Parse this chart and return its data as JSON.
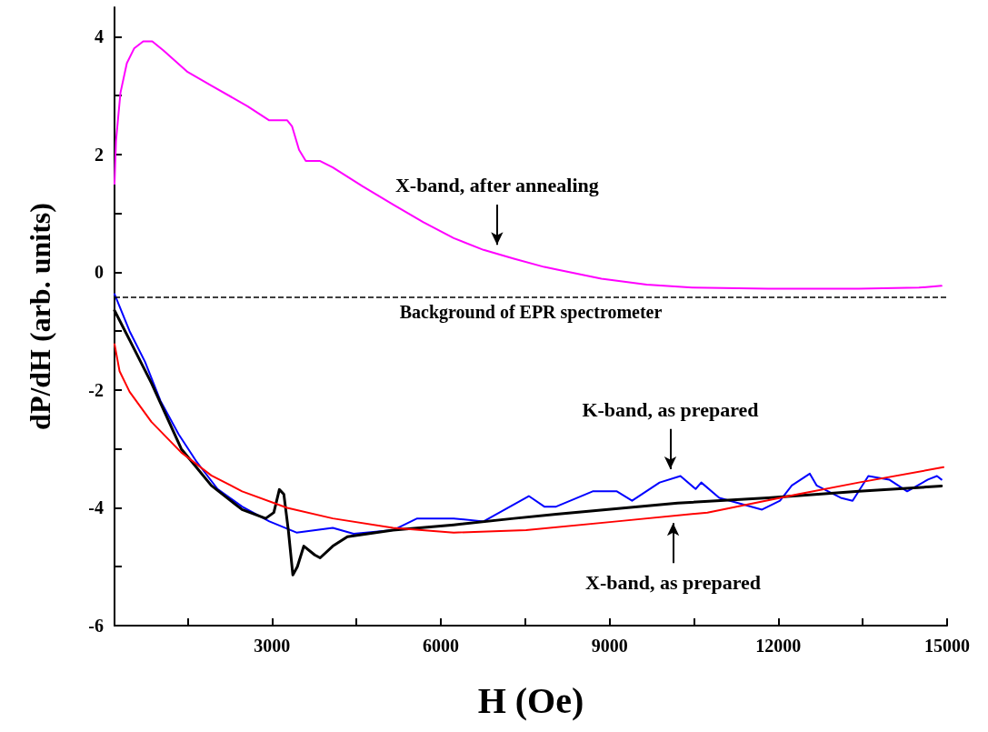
{
  "chart_data": {
    "type": "line",
    "xlabel": "H (Oe)",
    "ylabel": "dP/dH (arb. units)",
    "xlim": [
      200,
      15000
    ],
    "ylim": [
      -6,
      4.5
    ],
    "xticks": [
      {
        "value": 1500,
        "label": null
      },
      3000,
      {
        "value": 4500,
        "label": null
      },
      6000,
      {
        "value": 7500,
        "label": null
      },
      9000,
      {
        "value": 10500,
        "label": null
      },
      12000,
      {
        "value": 13500,
        "label": null
      },
      15000
    ],
    "yticks": [
      -6,
      {
        "value": -5,
        "label": null
      },
      -4,
      {
        "value": -3,
        "label": null
      },
      -2,
      {
        "value": -1,
        "label": null
      },
      0,
      {
        "value": 1,
        "label": null
      },
      2,
      {
        "value": 3,
        "label": null
      },
      4
    ],
    "grid": false,
    "marker": "none",
    "line_style": "solid",
    "series": [
      {
        "color": "#ff00ff",
        "x": [
          200,
          226,
          306,
          419,
          548,
          710,
          871,
          1065,
          1500,
          1920,
          2565,
          2950,
          3270,
          3355,
          3480,
          3600,
          3855,
          4080,
          4610,
          5150,
          5690,
          6230,
          6760,
          7300,
          7840,
          8050,
          8855,
          9660,
          10470,
          11820,
          13430,
          14500,
          14900
        ],
        "values": [
          1.5,
          2.23,
          3.05,
          3.55,
          3.8,
          3.92,
          3.92,
          3.77,
          3.4,
          3.17,
          2.82,
          2.58,
          2.58,
          2.48,
          2.08,
          1.89,
          1.89,
          1.78,
          1.46,
          1.15,
          0.85,
          0.58,
          0.38,
          0.23,
          0.09,
          0.05,
          -0.11,
          -0.21,
          -0.26,
          -0.28,
          -0.28,
          -0.26,
          -0.23
        ]
      },
      {
        "color": "#0000ff",
        "x": [
          200,
          468,
          742,
          1016,
          1339,
          1661,
          2032,
          2468,
          2952,
          3435,
          4080,
          4450,
          5150,
          5580,
          6230,
          6760,
          7565,
          7840,
          8050,
          8700,
          9130,
          9400,
          9890,
          10260,
          10530,
          10630,
          10950,
          11710,
          12030,
          12240,
          12560,
          12680,
          13110,
          13320,
          13600,
          13970,
          14290,
          14660,
          14820,
          14900
        ],
        "values": [
          -0.37,
          -1.0,
          -1.52,
          -2.18,
          -2.75,
          -3.22,
          -3.68,
          -3.98,
          -4.23,
          -4.42,
          -4.34,
          -4.44,
          -4.38,
          -4.18,
          -4.18,
          -4.23,
          -3.8,
          -3.98,
          -3.98,
          -3.72,
          -3.72,
          -3.88,
          -3.57,
          -3.46,
          -3.68,
          -3.57,
          -3.83,
          -4.03,
          -3.88,
          -3.62,
          -3.42,
          -3.62,
          -3.83,
          -3.88,
          -3.46,
          -3.52,
          -3.72,
          -3.52,
          -3.46,
          -3.52
        ]
      },
      {
        "color": "#000000",
        "x": [
          200,
          468,
          855,
          1387,
          1920,
          2468,
          2887,
          3032,
          3130,
          3210,
          3290,
          3370,
          3450,
          3565,
          3758,
          3855,
          4080,
          4340,
          5150,
          6230,
          7300,
          8050,
          10210,
          11820,
          13430,
          14900
        ],
        "values": [
          -0.65,
          -1.15,
          -1.88,
          -3.0,
          -3.62,
          -4.03,
          -4.18,
          -4.08,
          -3.69,
          -3.77,
          -4.38,
          -5.14,
          -5.0,
          -4.65,
          -4.8,
          -4.85,
          -4.65,
          -4.49,
          -4.38,
          -4.29,
          -4.18,
          -4.11,
          -3.92,
          -3.83,
          -3.72,
          -3.63
        ]
      },
      {
        "color": "#ff0000",
        "x": [
          200,
          290,
          468,
          855,
          1387,
          1920,
          2468,
          3270,
          4080,
          5150,
          6230,
          7516,
          9130,
          10740,
          12350,
          13430,
          14935
        ],
        "values": [
          -1.22,
          -1.68,
          -2.03,
          -2.54,
          -3.06,
          -3.45,
          -3.72,
          -4.0,
          -4.18,
          -4.34,
          -4.42,
          -4.38,
          -4.23,
          -4.08,
          -3.77,
          -3.57,
          -3.31
        ]
      }
    ],
    "ref_lines": [
      {
        "axis": "y",
        "value": -0.42,
        "label": "Background of EPR spectrometer",
        "color": "#000000",
        "line_style": "dashed"
      }
    ],
    "annotations": [
      {
        "text": "X-band, after annealing",
        "x": 7000,
        "y": 0.31
      },
      {
        "text": "K-band, as prepared",
        "x": 10080,
        "y": -3.5
      },
      {
        "text": "X-band, as prepared",
        "x": 10130,
        "y": -4.1
      }
    ]
  }
}
